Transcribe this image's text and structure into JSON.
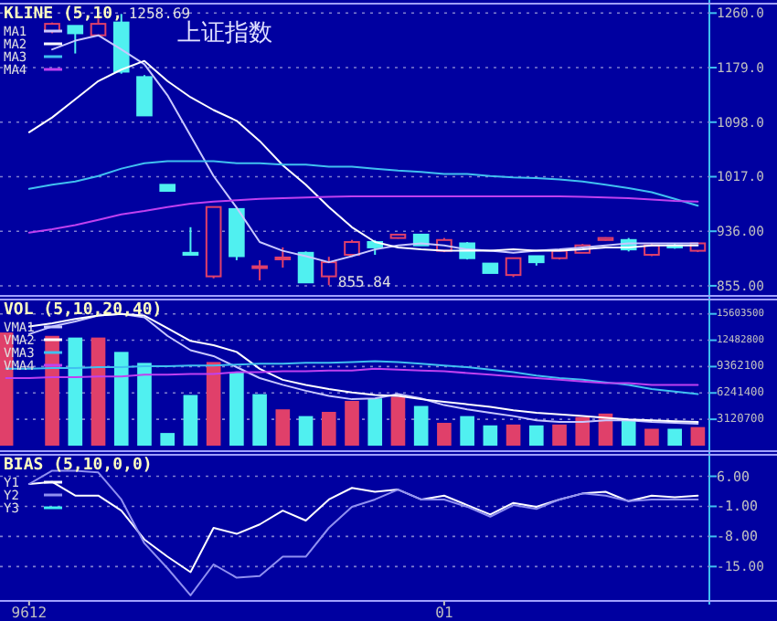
{
  "chart_data": [
    {
      "type": "candlestick",
      "title": "上证指数",
      "subtitle": "KLINE (5,10,",
      "categories": [
        null,
        null,
        null,
        null,
        null,
        null,
        null,
        null,
        null,
        null,
        null,
        null,
        null,
        null,
        null,
        null,
        null,
        null,
        null,
        null,
        null,
        null,
        null,
        null,
        null,
        null,
        null,
        null,
        null,
        null,
        null
      ],
      "ohlc": [
        null,
        null,
        [
          1233,
          1246,
          1230,
          1244
        ],
        [
          1241,
          1241,
          1200,
          1230
        ],
        [
          1227,
          1252,
          1227,
          1244
        ],
        [
          1246,
          1258.69,
          1170,
          1173
        ],
        [
          1165,
          1168,
          1108,
          1108
        ],
        [
          1005,
          1005,
          996,
          996
        ],
        [
          904,
          942,
          900,
          901
        ],
        [
          869,
          972,
          866,
          972
        ],
        [
          969,
          969,
          893,
          899
        ],
        [
          882,
          893,
          863,
          884
        ],
        [
          895,
          912,
          882,
          897
        ],
        [
          904,
          906,
          860,
          860
        ],
        [
          869,
          898,
          855.84,
          890
        ],
        [
          901,
          923,
          898,
          920
        ],
        [
          920,
          923,
          901,
          912
        ],
        [
          926,
          932,
          925,
          931
        ],
        [
          931,
          931,
          915,
          915
        ],
        [
          907,
          926,
          905,
          923
        ],
        [
          918,
          920,
          894,
          896
        ],
        [
          888,
          888,
          874,
          874
        ],
        [
          871,
          896,
          868,
          896
        ],
        [
          899,
          899,
          885,
          890
        ],
        [
          896,
          909,
          894,
          907
        ],
        [
          904,
          917,
          904,
          915
        ],
        [
          923,
          927,
          922,
          926
        ],
        [
          923,
          926,
          906,
          909
        ],
        [
          901,
          917,
          899,
          915
        ],
        [
          915,
          918,
          910,
          912
        ],
        [
          907,
          918,
          905,
          918
        ]
      ],
      "colors": [
        null,
        null,
        "#e0406a",
        "#50f0f0",
        "#e0406a",
        "#50f0f0",
        "#50f0f0",
        "#50f0f0",
        "#50f0f0",
        "#e0406a",
        "#50f0f0",
        "#e0406a",
        "#e0406a",
        "#50f0f0",
        "#e0406a",
        "#e0406a",
        "#50f0f0",
        "#e0406a",
        "#50f0f0",
        "#e0406a",
        "#50f0f0",
        "#50f0f0",
        "#e0406a",
        "#50f0f0",
        "#e0406a",
        "#e0406a",
        "#e0406a",
        "#50f0f0",
        "#e0406a",
        "#50f0f0",
        "#e0406a"
      ],
      "series": [
        {
          "name": "MA1",
          "type": "line",
          "color": "#c8c8ff",
          "values": [
            null,
            null,
            1206,
            1219,
            1227,
            1206,
            1184,
            1138,
            1078,
            1018,
            971,
            920,
            907,
            899,
            890,
            899,
            909,
            915,
            918,
            915,
            909,
            907,
            904,
            907,
            909,
            912,
            915,
            918,
            918,
            918,
            918
          ]
        },
        {
          "name": "MA2",
          "type": "line",
          "color": "#ffffff",
          "values": [
            null,
            1083,
            1105,
            1132,
            1159,
            1176,
            1189,
            1159,
            1135,
            1116,
            1100,
            1070,
            1034,
            1005,
            972,
            942,
            920,
            912,
            909,
            907,
            907,
            907,
            909,
            907,
            907,
            909,
            912,
            912,
            915,
            915,
            915
          ]
        },
        {
          "name": "MA3",
          "type": "line",
          "color": "#40c0f0",
          "values": [
            null,
            999,
            1005,
            1010,
            1018,
            1029,
            1037,
            1040,
            1040,
            1040,
            1037,
            1037,
            1035,
            1035,
            1032,
            1032,
            1029,
            1026,
            1024,
            1021,
            1021,
            1018,
            1016,
            1015,
            1013,
            1010,
            1005,
            1000,
            994,
            984,
            974
          ]
        },
        {
          "name": "MA4",
          "type": "line",
          "color": "#c040f0",
          "values": [
            null,
            934,
            939,
            945,
            953,
            961,
            966,
            972,
            977,
            980,
            982,
            984,
            985,
            986,
            987,
            988,
            988,
            988,
            988,
            988,
            988,
            988,
            988,
            988,
            988,
            987,
            986,
            985,
            983,
            981,
            980
          ]
        }
      ],
      "annotations": [
        "1258.69",
        "855.84"
      ],
      "ylim": [
        840,
        1274
      ],
      "yticks": [
        {
          "value": 1260,
          "label": "1260.0"
        },
        {
          "value": 1179,
          "label": "1179.0"
        },
        {
          "value": 1098,
          "label": "1098.0"
        },
        {
          "value": 1017,
          "label": "1017.0"
        },
        {
          "value": 936,
          "label": "936.00"
        },
        {
          "value": 855,
          "label": "855.00"
        }
      ],
      "grid": "y",
      "legend": "top left",
      "tick_labels": "y"
    },
    {
      "type": "bar",
      "title": "VOL (5,10,20,40)",
      "categories": [
        null,
        null,
        null,
        null,
        null,
        null,
        null,
        null,
        null,
        null,
        null,
        null,
        null,
        null,
        null,
        null,
        null,
        null,
        null,
        null,
        null,
        null,
        null,
        null,
        null,
        null,
        null,
        null,
        null,
        null,
        null
      ],
      "series": [
        {
          "type": "bar",
          "values": [
            13400000,
            null,
            13000000,
            12800000,
            12800000,
            11100000,
            9800000,
            1500000,
            6000000,
            9900000,
            8700000,
            6100000,
            4300000,
            3500000,
            4000000,
            5300000,
            5600000,
            5800000,
            4700000,
            2700000,
            3500000,
            2400000,
            2500000,
            2400000,
            2500000,
            3400000,
            3800000,
            3100000,
            2000000,
            2000000,
            2200000
          ],
          "colors": [
            "#e0406a",
            null,
            "#e0406a",
            "#50f0f0",
            "#e0406a",
            "#50f0f0",
            "#50f0f0",
            "#50f0f0",
            "#50f0f0",
            "#e0406a",
            "#50f0f0",
            "#50f0f0",
            "#e0406a",
            "#50f0f0",
            "#e0406a",
            "#e0406a",
            "#50f0f0",
            "#e0406a",
            "#50f0f0",
            "#e0406a",
            "#50f0f0",
            "#50f0f0",
            "#e0406a",
            "#50f0f0",
            "#e0406a",
            "#e0406a",
            "#e0406a",
            "#50f0f0",
            "#e0406a",
            "#50f0f0",
            "#e0406a"
          ]
        },
        {
          "name": "VMA1",
          "type": "line",
          "color": "#c8c8ff",
          "values": [
            null,
            13200000,
            14100000,
            14700000,
            15400000,
            15600000,
            15200000,
            13000000,
            11300000,
            10600000,
            9300000,
            8000000,
            7200000,
            6500000,
            5900000,
            5500000,
            5600000,
            6100000,
            5600000,
            4800000,
            4300000,
            3900000,
            3500000,
            3000000,
            2800000,
            2800000,
            3000000,
            3000000,
            2800000,
            2700000,
            2600000
          ]
        },
        {
          "name": "VMA2",
          "type": "line",
          "color": "#ffffff",
          "values": [
            null,
            14100000,
            14500000,
            15000000,
            15400000,
            15600000,
            15400000,
            13900000,
            12400000,
            11900000,
            11100000,
            9100000,
            7800000,
            7200000,
            6700000,
            6300000,
            6000000,
            5900000,
            5500000,
            5200000,
            4900000,
            4600000,
            4200000,
            3900000,
            3700000,
            3500000,
            3300000,
            3100000,
            3000000,
            2900000,
            2800000
          ]
        },
        {
          "name": "VMA3",
          "type": "line",
          "color": "#40c0f0",
          "values": [
            9100000,
            9100000,
            9200000,
            9200000,
            9300000,
            9300000,
            9400000,
            9400000,
            9500000,
            9500000,
            9600000,
            9700000,
            9700000,
            9800000,
            9800000,
            9900000,
            10000000,
            9900000,
            9700000,
            9500000,
            9300000,
            9000000,
            8700000,
            8300000,
            8000000,
            7800000,
            7500000,
            7200000,
            6700000,
            6400000,
            6100000
          ]
        },
        {
          "name": "VMA4",
          "type": "line",
          "color": "#c040f0",
          "values": [
            8000000,
            8000000,
            8100000,
            8100000,
            8200000,
            8200000,
            8400000,
            8400000,
            8500000,
            8500000,
            8700000,
            8700000,
            8800000,
            8800000,
            8900000,
            8900000,
            9100000,
            9000000,
            8900000,
            8800000,
            8600000,
            8400000,
            8200000,
            8000000,
            7800000,
            7600000,
            7400000,
            7400000,
            7200000,
            7200000,
            7200000
          ]
        }
      ],
      "ylim": [
        -650000,
        17300000
      ],
      "yticks": [
        15603500,
        12482800,
        9362100,
        6241400,
        3120700
      ],
      "grid": "y",
      "legend": "top left",
      "tick_labels": "y"
    },
    {
      "type": "line",
      "title": "BIAS (5,10,0,0)",
      "categories": [
        null,
        "9612",
        null,
        null,
        null,
        null,
        null,
        null,
        null,
        null,
        null,
        null,
        null,
        null,
        null,
        null,
        null,
        null,
        null,
        "01",
        null,
        null,
        null,
        null,
        null,
        null,
        null,
        null,
        null,
        null,
        null
      ],
      "series": [
        {
          "name": "Y1",
          "color": "#ffffff",
          "values": [
            null,
            4.2,
            4.7,
            1.5,
            1.5,
            -2.0,
            -8.7,
            -12.7,
            -16.3,
            -6.0,
            -7.4,
            -5.2,
            -2.0,
            -4.3,
            0.6,
            3.3,
            2.4,
            2.9,
            0.6,
            1.5,
            -0.7,
            -2.9,
            -0.2,
            -1.1,
            0.6,
            2.0,
            2.4,
            0.2,
            1.5,
            1.1,
            1.5
          ]
        },
        {
          "name": "Y2",
          "color": "#9090f0",
          "values": [
            null,
            4.2,
            7.3,
            7.3,
            6.9,
            0.6,
            -9.6,
            -15.4,
            -21.7,
            -14.5,
            -17.6,
            -17.2,
            -12.7,
            -12.7,
            -6.0,
            -1.1,
            0.6,
            2.9,
            0.6,
            0.6,
            -1.1,
            -3.4,
            -0.7,
            -1.6,
            0.6,
            2.0,
            1.5,
            0.2,
            0.6,
            0.6,
            0.6
          ]
        },
        {
          "name": "Y3",
          "color": "#40f0f0",
          "values": [
            null,
            null,
            null,
            null,
            null,
            null,
            null,
            null,
            null,
            null,
            null,
            null,
            null,
            null,
            null,
            null,
            null,
            null,
            null,
            null,
            null,
            null,
            null,
            null,
            null,
            null,
            null,
            null,
            null,
            null,
            null
          ]
        }
      ],
      "ylim": [
        -23,
        11
      ],
      "yticks": [
        {
          "value": 6,
          "label": "6.00"
        },
        {
          "value": -1,
          "label": "-1.00"
        },
        {
          "value": -8,
          "label": "-8.00"
        },
        {
          "value": -15,
          "label": "-15.00"
        }
      ],
      "grid": "y",
      "legend": "top left"
    }
  ]
}
